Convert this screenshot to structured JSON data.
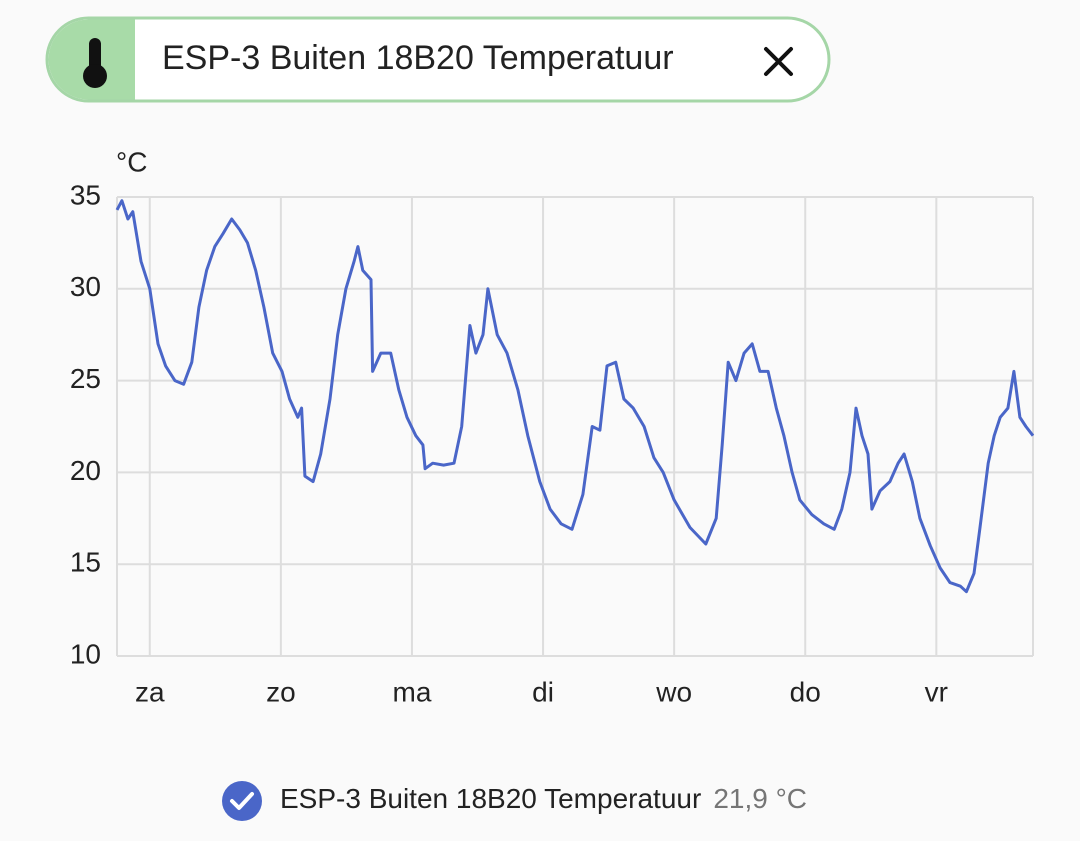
{
  "chip": {
    "label": "ESP-3 Buiten 18B20 Temperatuur"
  },
  "chart_data": {
    "type": "line",
    "unit": "°C",
    "x": [
      -6.0,
      -5.1,
      -4.0,
      -3.1,
      -1.6,
      0,
      1.5,
      2.9,
      4.6,
      6.2,
      7.7,
      9.0,
      10.4,
      11.9,
      13.4,
      15.0,
      16.5,
      17.9,
      19.4,
      20.9,
      22.5,
      24.2,
      25.6,
      27.1,
      27.8,
      28.4,
      29.9,
      31.3,
      33.0,
      34.4,
      35.9,
      37.4,
      38.1,
      39.0,
      40.5,
      40.8,
      42.3,
      44.1,
      45.6,
      47.1,
      48.7,
      50.0,
      50.4,
      51.8,
      53.8,
      55.7,
      57.1,
      58.6,
      59.7,
      61.0,
      61.9,
      63.6,
      65.4,
      67.4,
      69.2,
      71.4,
      73.3,
      75.3,
      77.3,
      79.3,
      81.0,
      82.4,
      83.7,
      85.3,
      86.8,
      88.5,
      90.5,
      92.3,
      94.0,
      96.0,
      98.9,
      101.8,
      103.7,
      104.8,
      105.9,
      107.3,
      108.8,
      110.3,
      111.7,
      113.2,
      114.7,
      116.1,
      117.6,
      119.0,
      121.2,
      123.4,
      125.3,
      126.7,
      128.2,
      129.3,
      130.4,
      131.5,
      132.2,
      133.7,
      135.5,
      137.0,
      138.1,
      139.6,
      141.0,
      142.9,
      144.7,
      146.5,
      148.4,
      149.5,
      150.9,
      152.0,
      153.5,
      154.6,
      155.7,
      157.1,
      158.2,
      159.3,
      160.4,
      161.7
    ],
    "series": [
      {
        "name": "ESP-3 Buiten 18B20 Temperatuur",
        "color": "#4a66c8",
        "values": [
          34.3,
          34.8,
          33.8,
          34.2,
          31.5,
          30,
          27,
          25.8,
          25,
          24.8,
          26,
          29,
          31,
          32.3,
          33,
          33.8,
          33.2,
          32.5,
          31,
          29,
          26.5,
          25.5,
          24,
          23,
          23.5,
          19.8,
          19.5,
          21,
          24,
          27.5,
          30,
          31.5,
          32.3,
          31,
          30.5,
          25.5,
          26.5,
          26.5,
          24.5,
          23,
          22,
          21.5,
          20.2,
          20.5,
          20.4,
          20.5,
          22.5,
          28,
          26.5,
          27.5,
          30,
          27.5,
          26.5,
          24.5,
          22,
          19.5,
          18,
          17.2,
          16.9,
          18.8,
          22.5,
          22.3,
          25.8,
          26,
          24,
          23.5,
          22.5,
          20.8,
          20,
          18.5,
          17,
          16.1,
          17.5,
          21.5,
          26,
          25,
          26.5,
          27,
          25.5,
          25.5,
          23.5,
          22,
          20,
          18.5,
          17.7,
          17.2,
          16.9,
          18,
          20,
          23.5,
          22,
          21,
          18,
          19,
          19.5,
          20.5,
          21,
          19.5,
          17.5,
          16,
          14.8,
          14,
          13.8,
          13.5,
          14.5,
          17,
          20.5,
          22,
          23,
          23.5,
          25.5,
          23,
          22.5,
          22
        ]
      }
    ],
    "xlim": [
      -6,
      161.7
    ],
    "xticks": [
      {
        "value": 0,
        "label": "za"
      },
      {
        "value": 24,
        "label": "zo"
      },
      {
        "value": 48,
        "label": "ma"
      },
      {
        "value": 72,
        "label": "di"
      },
      {
        "value": 96,
        "label": "wo"
      },
      {
        "value": 120,
        "label": "do"
      },
      {
        "value": 144,
        "label": "vr"
      }
    ],
    "ylim": [
      10,
      35
    ],
    "yticks": [
      10,
      15,
      20,
      25,
      30,
      35
    ],
    "grid": true
  },
  "legend": {
    "state": "21,9 °C"
  }
}
